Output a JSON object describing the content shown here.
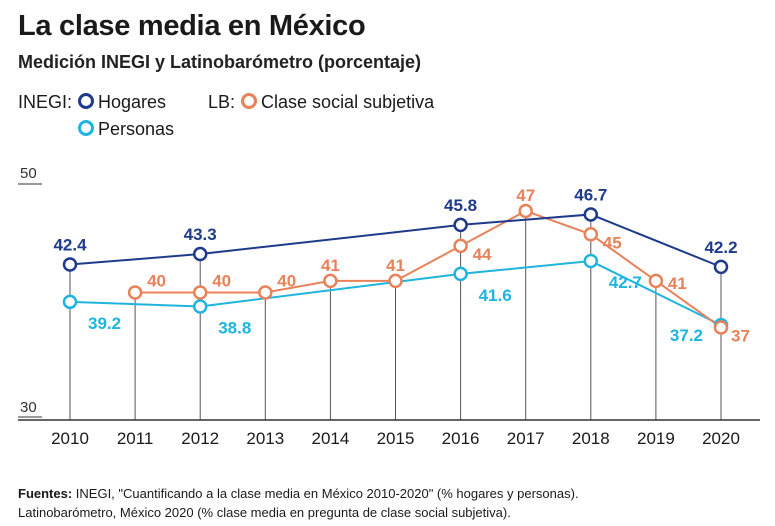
{
  "title": "La clase media en México",
  "subtitle": "Medición INEGI y Latinobarómetro (porcentaje)",
  "legend": {
    "inegi_prefix": "INEGI:",
    "lb_prefix": "LB:",
    "hogares": "Hogares",
    "personas": "Personas",
    "clase_social": "Clase social subjetiva"
  },
  "colors": {
    "hogares": "#1f3a8a",
    "personas": "#1fb4e0",
    "clase_social": "#e8825a",
    "axis": "#333333",
    "guide": "#555555"
  },
  "chart_data": {
    "type": "line",
    "x": [
      "2010",
      "2011",
      "2012",
      "2013",
      "2014",
      "2015",
      "2016",
      "2017",
      "2018",
      "2019",
      "2020"
    ],
    "ylim": [
      30,
      50
    ],
    "yticks": [
      "50",
      "30"
    ],
    "series": [
      {
        "name": "Hogares",
        "key": "hogares",
        "points": [
          [
            "2010",
            42.4
          ],
          [
            "2012",
            43.3
          ],
          [
            "2016",
            45.8
          ],
          [
            "2018",
            46.7
          ],
          [
            "2020",
            42.2
          ]
        ],
        "labels": [
          "42.4",
          "43.3",
          "45.8",
          "46.7",
          "42.2"
        ]
      },
      {
        "name": "Personas",
        "key": "personas",
        "points": [
          [
            "2010",
            39.2
          ],
          [
            "2012",
            38.8
          ],
          [
            "2016",
            41.6
          ],
          [
            "2018",
            42.7
          ],
          [
            "2020",
            37.2
          ]
        ],
        "labels": [
          "39.2",
          "38.8",
          "41.6",
          "42.7",
          "37.2"
        ]
      },
      {
        "name": "Clase social subjetiva",
        "key": "clase_social",
        "points": [
          [
            "2011",
            40
          ],
          [
            "2012",
            40
          ],
          [
            "2013",
            40
          ],
          [
            "2014",
            41
          ],
          [
            "2015",
            41
          ],
          [
            "2016",
            44
          ],
          [
            "2017",
            47
          ],
          [
            "2018",
            45
          ],
          [
            "2019",
            41
          ],
          [
            "2020",
            37
          ]
        ],
        "labels": [
          "40",
          "40",
          "40",
          "41",
          "41",
          "44",
          "47",
          "45",
          "41",
          "37"
        ]
      }
    ]
  },
  "footer": {
    "label": "Fuentes:",
    "line1": " INEGI, \"Cuantificando a la clase media en México 2010-2020\" (% hogares y personas).",
    "line2": "Latinobarómetro, México 2020 (% clase media en pregunta de clase social subjetiva)."
  }
}
